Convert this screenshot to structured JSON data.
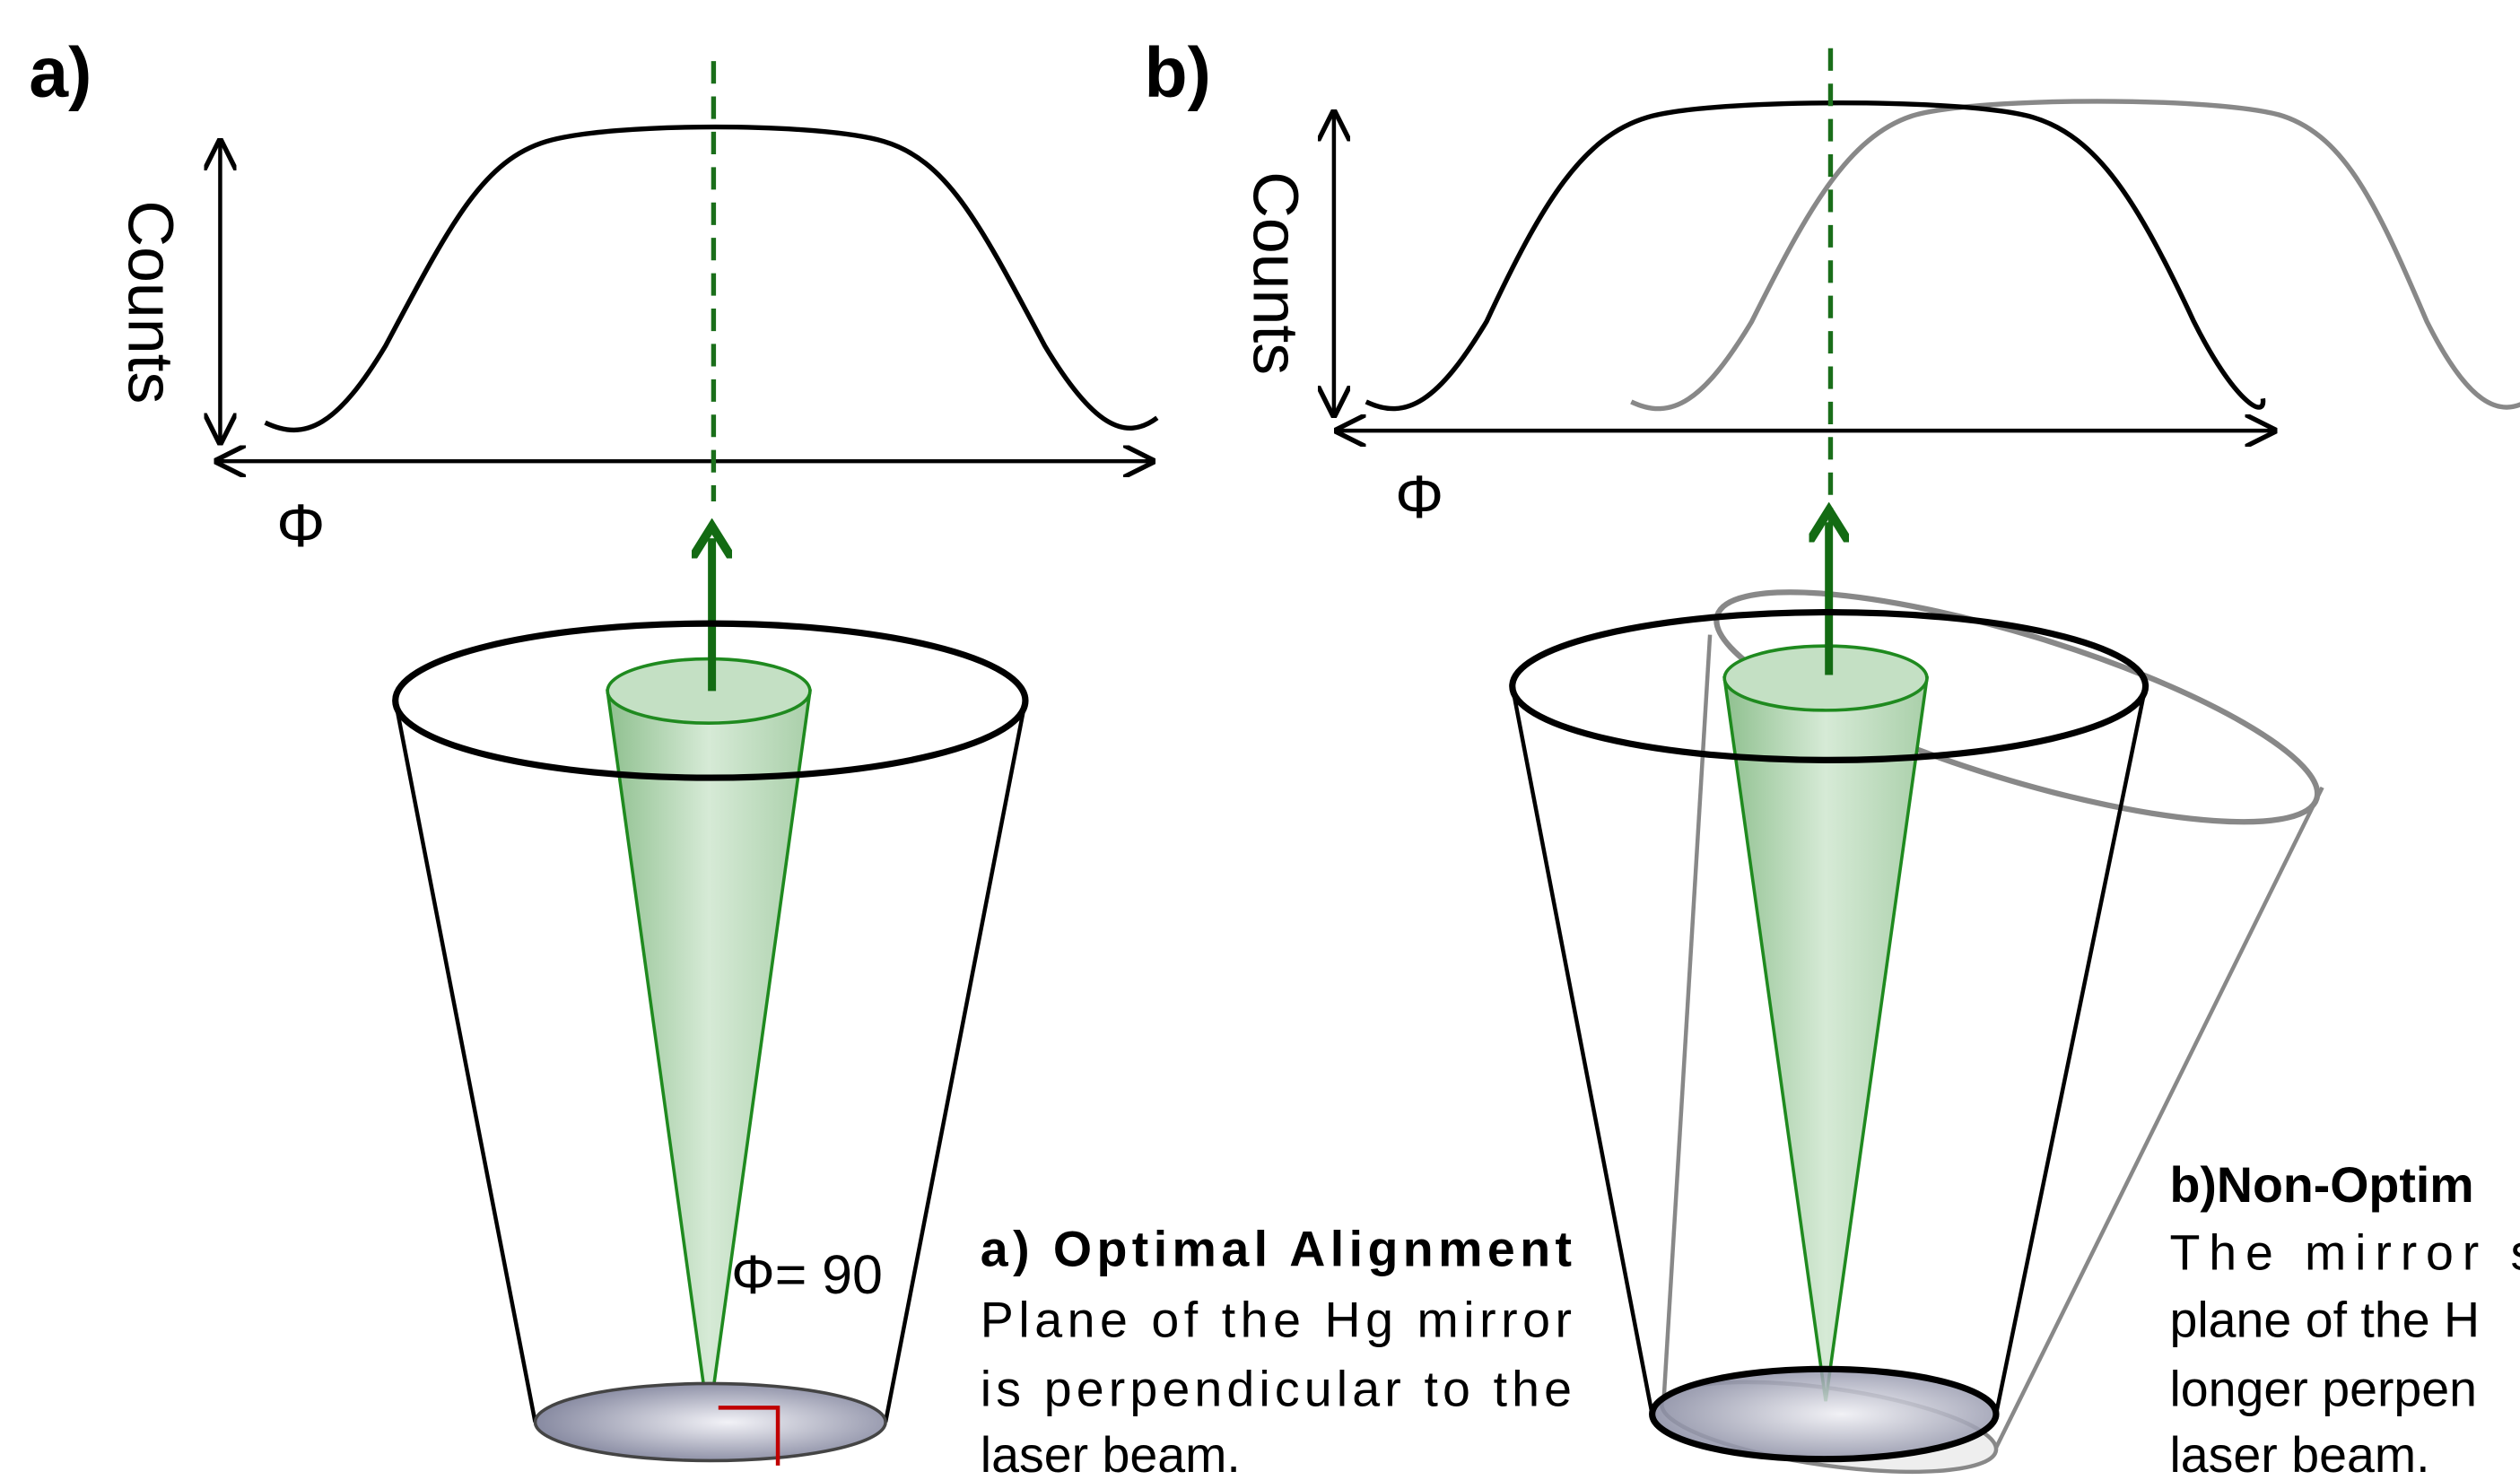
{
  "panels": [
    {
      "label": "a)",
      "y_axis_label": "Counts",
      "x_axis_label": "Φ",
      "angle_label": "Φ= 90",
      "caption": {
        "title": "a) Optimal Alignment",
        "lines": [
          "Plane of the Hg mirror",
          "is perpendicular to the",
          "laser beam."
        ]
      }
    },
    {
      "label": "b)",
      "y_axis_label": "Counts",
      "x_axis_label": "Φ",
      "caption": {
        "title": "b)Non-Optim",
        "lines": [
          "The mirror sl",
          "plane of the H",
          "longer perpen",
          "laser beam."
        ]
      }
    }
  ]
}
